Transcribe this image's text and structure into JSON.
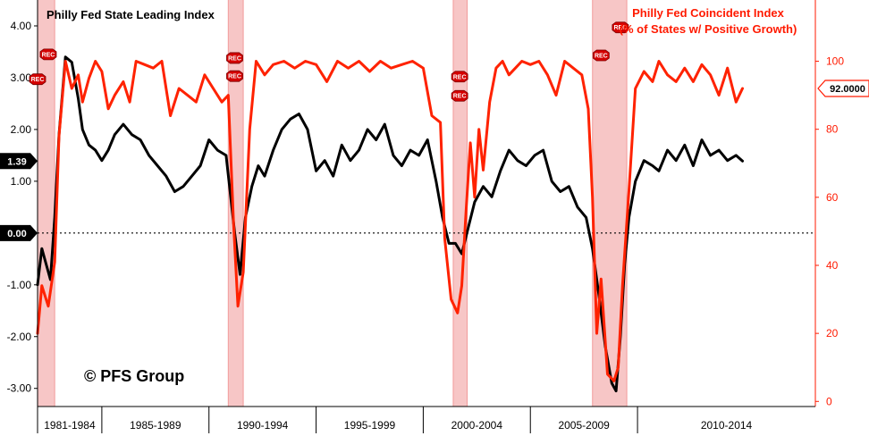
{
  "chart_data": {
    "type": "line",
    "title_left": "Philly Fed State Leading Index",
    "title_right_line1": "Philly Fed Coincident Index",
    "title_right_line2": "(% of States w/ Positive Growth)",
    "watermark": "© PFS Group",
    "x_range": [
      1980.0,
      2016.3
    ],
    "left_axis": {
      "min": -3.35,
      "max": 4.5,
      "ticks": [
        -3,
        -2,
        -1,
        0,
        1,
        2,
        3,
        4
      ],
      "tick_labels": [
        "-3.00",
        "-2.00",
        "-1.00",
        "0.00",
        "1.00",
        "2.00",
        "3.00",
        "4.00"
      ]
    },
    "right_axis": {
      "min": -1.5,
      "max": 118,
      "ticks": [
        0,
        20,
        40,
        60,
        80,
        100
      ],
      "tick_labels": [
        "0",
        "20",
        "40",
        "60",
        "80",
        "100"
      ]
    },
    "x_period_labels": [
      {
        "label": "1981-1984",
        "start": 1980.0,
        "end": 1983.0
      },
      {
        "label": "1985-1989",
        "start": 1983.0,
        "end": 1988.0
      },
      {
        "label": "1990-1994",
        "start": 1988.0,
        "end": 1993.0
      },
      {
        "label": "1995-1999",
        "start": 1993.0,
        "end": 1998.0
      },
      {
        "label": "2000-2004",
        "start": 1998.0,
        "end": 2003.0
      },
      {
        "label": "2005-2009",
        "start": 2003.0,
        "end": 2008.0
      },
      {
        "label": "2010-2014",
        "start": 2008.0,
        "end": 2016.3
      }
    ],
    "recessions": [
      {
        "start": 1980.0,
        "end": 1980.8
      },
      {
        "start": 1988.9,
        "end": 1989.6
      },
      {
        "start": 1999.4,
        "end": 2000.05
      },
      {
        "start": 2005.9,
        "end": 2007.5
      }
    ],
    "rec_markers": [
      {
        "label": "REC",
        "x": 1980.0,
        "axis": "left",
        "value": 2.97
      },
      {
        "label": "REC",
        "x": 1980.5,
        "axis": "left",
        "value": 3.45
      },
      {
        "label": "REC",
        "x": 1989.2,
        "axis": "left",
        "value": 3.38
      },
      {
        "label": "REC",
        "x": 1989.2,
        "axis": "left",
        "value": 3.03
      },
      {
        "label": "REC",
        "x": 1999.7,
        "axis": "left",
        "value": 3.02
      },
      {
        "label": "REC",
        "x": 1999.7,
        "axis": "left",
        "value": 2.65
      },
      {
        "label": "REC",
        "x": 2006.3,
        "axis": "left",
        "value": 3.43
      },
      {
        "label": "REC",
        "x": 2007.2,
        "axis": "left",
        "value": 3.97
      }
    ],
    "series": [
      {
        "name": "Philly Fed State Leading Index",
        "axis": "left",
        "color": "#000000",
        "last_value_label": "1.39",
        "x": [
          1980.0,
          1980.2,
          1980.4,
          1980.6,
          1980.8,
          1981.0,
          1981.3,
          1981.6,
          1981.9,
          1982.1,
          1982.4,
          1982.7,
          1983.0,
          1983.3,
          1983.6,
          1984.0,
          1984.4,
          1984.8,
          1985.2,
          1985.6,
          1986.0,
          1986.4,
          1986.8,
          1987.2,
          1987.6,
          1988.0,
          1988.4,
          1988.8,
          1989.2,
          1989.45,
          1989.7,
          1990.0,
          1990.3,
          1990.6,
          1991.0,
          1991.4,
          1991.8,
          1992.2,
          1992.6,
          1993.0,
          1993.4,
          1993.8,
          1994.2,
          1994.6,
          1995.0,
          1995.4,
          1995.8,
          1996.2,
          1996.6,
          1997.0,
          1997.4,
          1997.8,
          1998.2,
          1998.6,
          1998.9,
          1999.2,
          1999.5,
          1999.8,
          2000.1,
          2000.4,
          2000.8,
          2001.2,
          2001.6,
          2002.0,
          2002.4,
          2002.8,
          2003.2,
          2003.6,
          2004.0,
          2004.4,
          2004.8,
          2005.2,
          2005.6,
          2005.9,
          2006.2,
          2006.5,
          2006.8,
          2007.0,
          2007.2,
          2007.4,
          2007.6,
          2007.9,
          2008.3,
          2008.7,
          2009.0,
          2009.4,
          2009.8,
          2010.2,
          2010.6,
          2011.0,
          2011.4,
          2011.8,
          2012.2,
          2012.6,
          2012.9
        ],
        "values": [
          -1.0,
          -0.3,
          -0.6,
          -0.9,
          0.3,
          1.9,
          3.4,
          3.3,
          2.6,
          2.0,
          1.7,
          1.6,
          1.4,
          1.6,
          1.9,
          2.1,
          1.9,
          1.8,
          1.5,
          1.3,
          1.1,
          0.8,
          0.9,
          1.1,
          1.3,
          1.8,
          1.6,
          1.5,
          0.0,
          -0.8,
          0.3,
          0.9,
          1.3,
          1.1,
          1.6,
          2.0,
          2.2,
          2.3,
          2.0,
          1.2,
          1.4,
          1.1,
          1.7,
          1.4,
          1.6,
          2.0,
          1.8,
          2.1,
          1.5,
          1.3,
          1.6,
          1.5,
          1.8,
          1.0,
          0.3,
          -0.2,
          -0.2,
          -0.4,
          0.1,
          0.6,
          0.9,
          0.7,
          1.2,
          1.6,
          1.4,
          1.3,
          1.5,
          1.6,
          1.0,
          0.8,
          0.9,
          0.5,
          0.3,
          -0.3,
          -1.2,
          -2.2,
          -2.9,
          -3.05,
          -2.0,
          -0.6,
          0.3,
          1.0,
          1.4,
          1.3,
          1.2,
          1.6,
          1.4,
          1.7,
          1.3,
          1.8,
          1.5,
          1.6,
          1.4,
          1.5,
          1.39
        ]
      },
      {
        "name": "Philly Fed Coincident Index",
        "axis": "right",
        "color": "#ff2200",
        "last_value_label": "92.0000",
        "x": [
          1980.0,
          1980.2,
          1980.5,
          1980.8,
          1981.0,
          1981.3,
          1981.6,
          1981.9,
          1982.1,
          1982.4,
          1982.7,
          1983.0,
          1983.3,
          1983.6,
          1984.0,
          1984.3,
          1984.6,
          1985.0,
          1985.4,
          1985.8,
          1986.2,
          1986.6,
          1987.0,
          1987.4,
          1987.8,
          1988.2,
          1988.6,
          1988.9,
          1989.15,
          1989.35,
          1989.6,
          1989.9,
          1990.2,
          1990.6,
          1991.0,
          1991.5,
          1992.0,
          1992.5,
          1993.0,
          1993.5,
          1994.0,
          1994.5,
          1995.0,
          1995.5,
          1996.0,
          1996.5,
          1997.0,
          1997.5,
          1998.0,
          1998.4,
          1998.8,
          1999.0,
          1999.3,
          1999.6,
          1999.8,
          2000.0,
          2000.2,
          2000.4,
          2000.6,
          2000.8,
          2001.1,
          2001.4,
          2001.7,
          2002.0,
          2002.3,
          2002.6,
          2003.0,
          2003.4,
          2003.8,
          2004.2,
          2004.6,
          2005.0,
          2005.4,
          2005.7,
          2005.9,
          2006.1,
          2006.3,
          2006.6,
          2006.9,
          2007.1,
          2007.3,
          2007.6,
          2007.9,
          2008.3,
          2008.7,
          2009.0,
          2009.4,
          2009.8,
          2010.2,
          2010.6,
          2011.0,
          2011.4,
          2011.8,
          2012.2,
          2012.6,
          2012.9
        ],
        "values": [
          20.0,
          34.0,
          28.0,
          41.0,
          78.0,
          100.0,
          92.0,
          96.0,
          88.0,
          95.0,
          100.0,
          97.0,
          86.0,
          90.0,
          94.0,
          88.0,
          100.0,
          99.0,
          98.0,
          100.0,
          84.0,
          92.0,
          90.0,
          88.0,
          96.0,
          92.0,
          88.0,
          90.0,
          52.0,
          28.0,
          38.0,
          80.0,
          100.0,
          96.0,
          99.0,
          100.0,
          98.0,
          100.0,
          99.0,
          94.0,
          100.0,
          98.0,
          100.0,
          97.0,
          100.0,
          98.0,
          99.0,
          100.0,
          98.0,
          84.0,
          82.0,
          48.0,
          30.0,
          26.0,
          34.0,
          56.0,
          76.0,
          60.0,
          80.0,
          68.0,
          88.0,
          98.0,
          100.0,
          96.0,
          98.0,
          100.0,
          99.0,
          100.0,
          96.0,
          90.0,
          100.0,
          98.0,
          96.0,
          86.0,
          60.0,
          20.0,
          36.0,
          8.0,
          6.0,
          10.0,
          34.0,
          62.0,
          92.0,
          97.0,
          94.0,
          100.0,
          96.0,
          94.0,
          98.0,
          94.0,
          99.0,
          96.0,
          90.0,
          98.0,
          88.0,
          92.0
        ]
      }
    ]
  }
}
